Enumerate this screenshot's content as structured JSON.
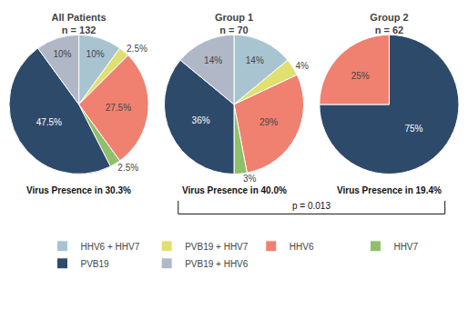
{
  "chart_data": [
    {
      "type": "pie",
      "title": "All Patients",
      "subtitle": "n = 132",
      "categories": [
        "HHV6 + HHV7",
        "PVB19 + HHV7",
        "HHV6",
        "HHV7",
        "PVB19",
        "PVB19 + HHV6"
      ],
      "values": [
        10.0,
        2.5,
        27.5,
        2.5,
        47.5,
        10.0
      ],
      "value_labels": [
        "10%",
        "2.5%",
        "27.5%",
        "2.5%",
        "47.5%",
        "10%"
      ],
      "colors": [
        "#A8C4D0",
        "#E0E070",
        "#F08070",
        "#8FBF6A",
        "#2E4A6B",
        "#B0B8C8"
      ],
      "data_labels": true,
      "legend": "bottom",
      "annotations": [
        "Virus Presence in 30.3%"
      ]
    },
    {
      "type": "pie",
      "title": "Group 1",
      "subtitle": "n = 70",
      "categories": [
        "HHV6 + HHV7",
        "PVB19 + HHV7",
        "HHV6",
        "HHV7",
        "PVB19",
        "PVB19 + HHV6"
      ],
      "values": [
        14.0,
        4.0,
        29.0,
        3.0,
        36.0,
        14.0
      ],
      "value_labels": [
        "14%",
        "4%",
        "29%",
        "3%",
        "36%",
        "14%"
      ],
      "colors": [
        "#A8C4D0",
        "#E0E070",
        "#F08070",
        "#8FBF6A",
        "#2E4A6B",
        "#B0B8C8"
      ],
      "data_labels": true,
      "legend": "bottom",
      "annotations": [
        "Virus Presence in 40.0%"
      ]
    },
    {
      "type": "pie",
      "title": "Group 2",
      "subtitle": "n = 62",
      "categories": [
        "PVB19",
        "HHV6"
      ],
      "values": [
        75.0,
        25.0
      ],
      "value_labels": [
        "75%",
        "25%"
      ],
      "colors": [
        "#2E4A6B",
        "#F08070"
      ],
      "data_labels": true,
      "legend": "bottom",
      "annotations": [
        "Virus Presence in 19.4%"
      ]
    }
  ],
  "annotations": [
    "p = 0.013"
  ]
}
